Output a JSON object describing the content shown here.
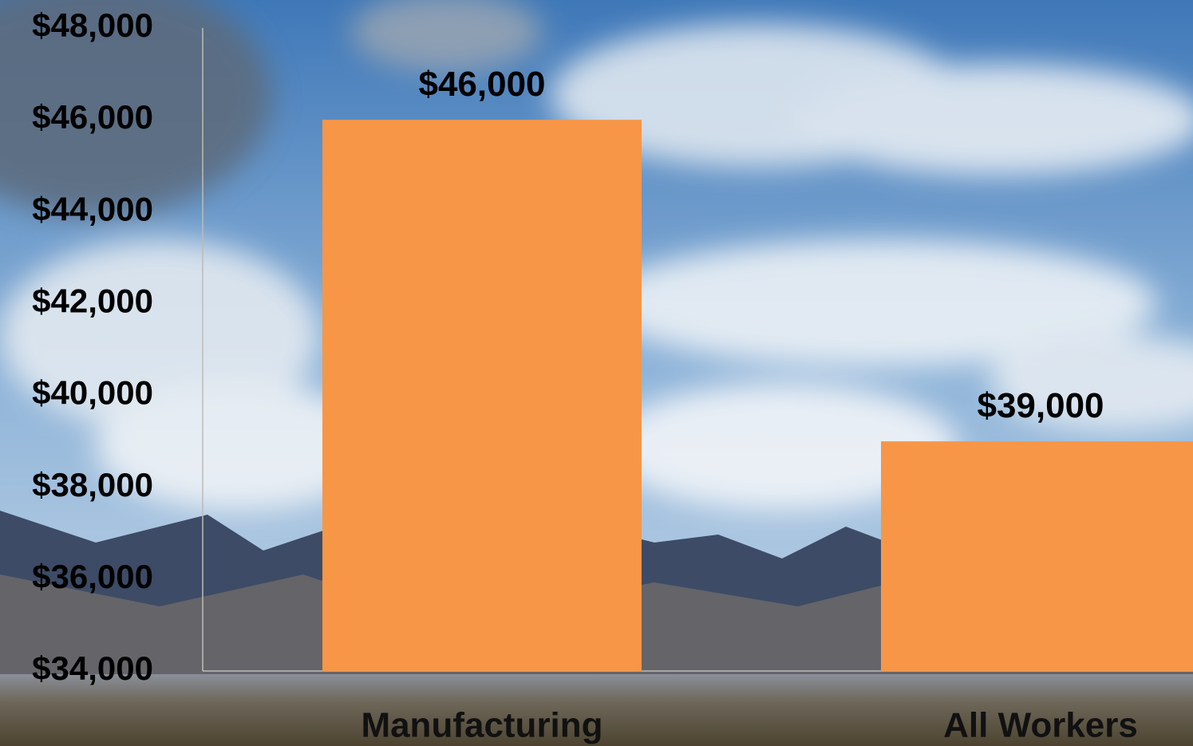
{
  "chart_data": {
    "type": "bar",
    "categories": [
      "Manufacturing",
      "All Workers"
    ],
    "values": [
      46000,
      39000
    ],
    "value_labels": [
      "$46,000",
      "$39,000"
    ],
    "color": "#f79646",
    "ylim": [
      34000,
      48000
    ],
    "yticks": [
      {
        "value": 34000,
        "label": "$34,000"
      },
      {
        "value": 36000,
        "label": "$36,000"
      },
      {
        "value": 38000,
        "label": "$38,000"
      },
      {
        "value": 40000,
        "label": "$40,000"
      },
      {
        "value": 42000,
        "label": "$42,000"
      },
      {
        "value": 44000,
        "label": "$44,000"
      },
      {
        "value": 46000,
        "label": "$46,000"
      },
      {
        "value": 48000,
        "label": "$48,000"
      }
    ],
    "grid": false
  }
}
